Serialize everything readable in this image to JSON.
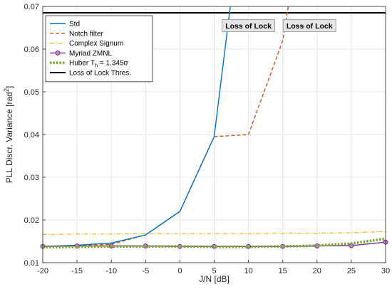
{
  "chart_data": {
    "type": "line",
    "xlabel": "J/N [dB]",
    "ylabel": "PLL Discr. Variance [rad",
    "ylabel_sup": "2",
    "ylabel_end": "]",
    "xlim": [
      -20,
      30
    ],
    "ylim": [
      0.01,
      0.07
    ],
    "xticks": [
      -20,
      -15,
      -10,
      -5,
      0,
      5,
      10,
      15,
      20,
      25,
      30
    ],
    "yticks": [
      0.01,
      0.02,
      0.03,
      0.04,
      0.05,
      0.06,
      0.07
    ],
    "grid": true,
    "legend_position": "top-left",
    "x": [
      -20,
      -15,
      -10,
      -5,
      0,
      5,
      10,
      15,
      20,
      25,
      30
    ],
    "series": [
      {
        "name": "Std",
        "color": "#0072BD",
        "style": "solid",
        "x": [
          -20,
          -15,
          -10,
          -5,
          0,
          5,
          7.5
        ],
        "values": [
          0.0138,
          0.0141,
          0.0146,
          0.0165,
          0.022,
          0.0395,
          0.072
        ]
      },
      {
        "name": "Notch filter",
        "color": "#D95319",
        "style": "dashed",
        "x": [
          -20,
          -15,
          -10,
          -5,
          0,
          5,
          10,
          15,
          16
        ],
        "values": [
          0.0138,
          0.014,
          0.0143,
          0.0165,
          0.022,
          0.0395,
          0.04,
          0.062,
          0.072
        ]
      },
      {
        "name": "Complex Signum",
        "color": "#EDB120",
        "style": "dashdot",
        "x": [
          -20,
          -15,
          -10,
          -5,
          0,
          5,
          10,
          15,
          20,
          25,
          30
        ],
        "values": [
          0.0166,
          0.0167,
          0.0167,
          0.0168,
          0.0168,
          0.0168,
          0.0168,
          0.0169,
          0.0169,
          0.017,
          0.0173
        ]
      },
      {
        "name": "Myriad ZMNL",
        "color": "#7E2F8E",
        "style": "solid-marker",
        "x": [
          -20,
          -15,
          -10,
          -5,
          0,
          5,
          10,
          15,
          20,
          25,
          30
        ],
        "values": [
          0.0138,
          0.0139,
          0.0139,
          0.0139,
          0.0138,
          0.0138,
          0.0138,
          0.0138,
          0.0139,
          0.014,
          0.0148
        ]
      },
      {
        "name": "Huber T",
        "name_sub": "h",
        "name_end": " = 1.345σ",
        "color": "#77AC30",
        "style": "dotted",
        "x": [
          -20,
          -15,
          -10,
          -5,
          0,
          5,
          10,
          15,
          20,
          25,
          30
        ],
        "values": [
          0.0136,
          0.0137,
          0.0138,
          0.0138,
          0.0138,
          0.0137,
          0.0137,
          0.0138,
          0.014,
          0.0145,
          0.0156
        ]
      },
      {
        "name": "Loss of Lock Thres.",
        "color": "#000000",
        "style": "threshold",
        "x": [
          -20,
          30
        ],
        "values": [
          0.0685,
          0.0685
        ]
      }
    ],
    "annotations": [
      {
        "text": "Loss of Lock",
        "x": 10.0,
        "y": 0.0655
      },
      {
        "text": "Loss of Lock",
        "x": 18.9,
        "y": 0.0655
      }
    ]
  }
}
